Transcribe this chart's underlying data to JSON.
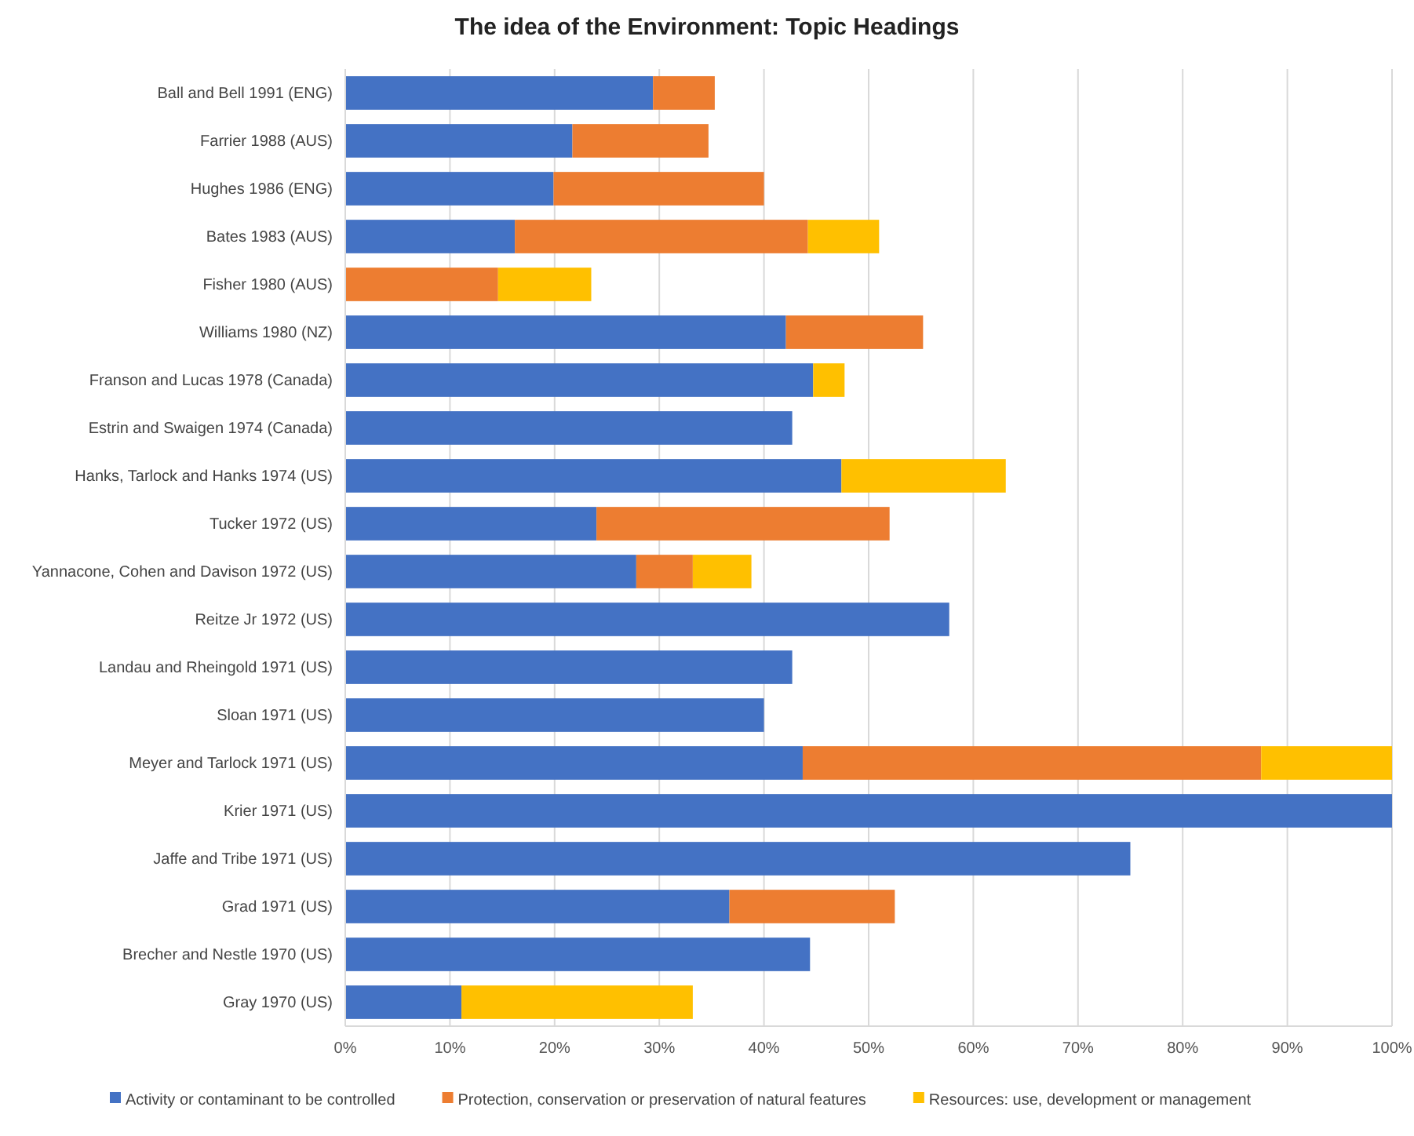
{
  "chart_data": {
    "type": "bar",
    "orientation": "horizontal",
    "stacked": true,
    "title": "The idea of the Environment: Topic Headings",
    "categories": [
      "Ball and Bell 1991 (ENG)",
      "Farrier 1988 (AUS)",
      "Hughes 1986 (ENG)",
      "Bates 1983 (AUS)",
      "Fisher 1980 (AUS)",
      "Williams 1980 (NZ)",
      "Franson and Lucas 1978 (Canada)",
      "Estrin and Swaigen 1974 (Canada)",
      "Hanks, Tarlock and Hanks 1974 (US)",
      "Tucker 1972 (US)",
      "Yannacone, Cohen and Davison 1972 (US)",
      "Reitze Jr 1972 (US)",
      "Landau and Rheingold 1971 (US)",
      "Sloan 1971 (US)",
      "Meyer and Tarlock 1971 (US)",
      "Krier 1971 (US)",
      "Jaffe and Tribe 1971 (US)",
      "Grad 1971 (US)",
      "Brecher and Nestle 1970 (US)",
      "Gray 1970 (US)"
    ],
    "series": [
      {
        "name": "Activity or contaminant to be controlled",
        "color": "#4472c4",
        "values": [
          29.4,
          21.7,
          19.9,
          16.2,
          null,
          42.1,
          44.7,
          42.7,
          47.4,
          24.0,
          27.8,
          57.7,
          42.7,
          40.0,
          43.7,
          100,
          75,
          36.7,
          44.4,
          11.1
        ]
      },
      {
        "name": "Protection, conservation or preservation of natural features",
        "color": "#ed7d31",
        "values": [
          5.9,
          13.0,
          20.1,
          28.0,
          14.6,
          13.1,
          null,
          null,
          null,
          28.0,
          5.4,
          null,
          null,
          null,
          43.8,
          null,
          null,
          15.8,
          null,
          null
        ]
      },
      {
        "name": "Resources: use, development or management",
        "color": "#ffc000",
        "values": [
          null,
          null,
          null,
          6.8,
          8.9,
          null,
          3.0,
          null,
          15.7,
          null,
          5.6,
          null,
          null,
          null,
          12.5,
          null,
          null,
          null,
          null,
          22.1
        ]
      }
    ],
    "xlim": [
      0,
      100
    ],
    "xticks": [
      {
        "value": 0,
        "label": "0%"
      },
      {
        "value": 10,
        "label": "10%"
      },
      {
        "value": 20,
        "label": "20%"
      },
      {
        "value": 30,
        "label": "30%"
      },
      {
        "value": 40,
        "label": "40%"
      },
      {
        "value": 50,
        "label": "50%"
      },
      {
        "value": 60,
        "label": "60%"
      },
      {
        "value": 70,
        "label": "70%"
      },
      {
        "value": 80,
        "label": "80%"
      },
      {
        "value": 90,
        "label": "90%"
      },
      {
        "value": 100,
        "label": "100%"
      }
    ],
    "grid": "x",
    "legend": "bottom"
  }
}
